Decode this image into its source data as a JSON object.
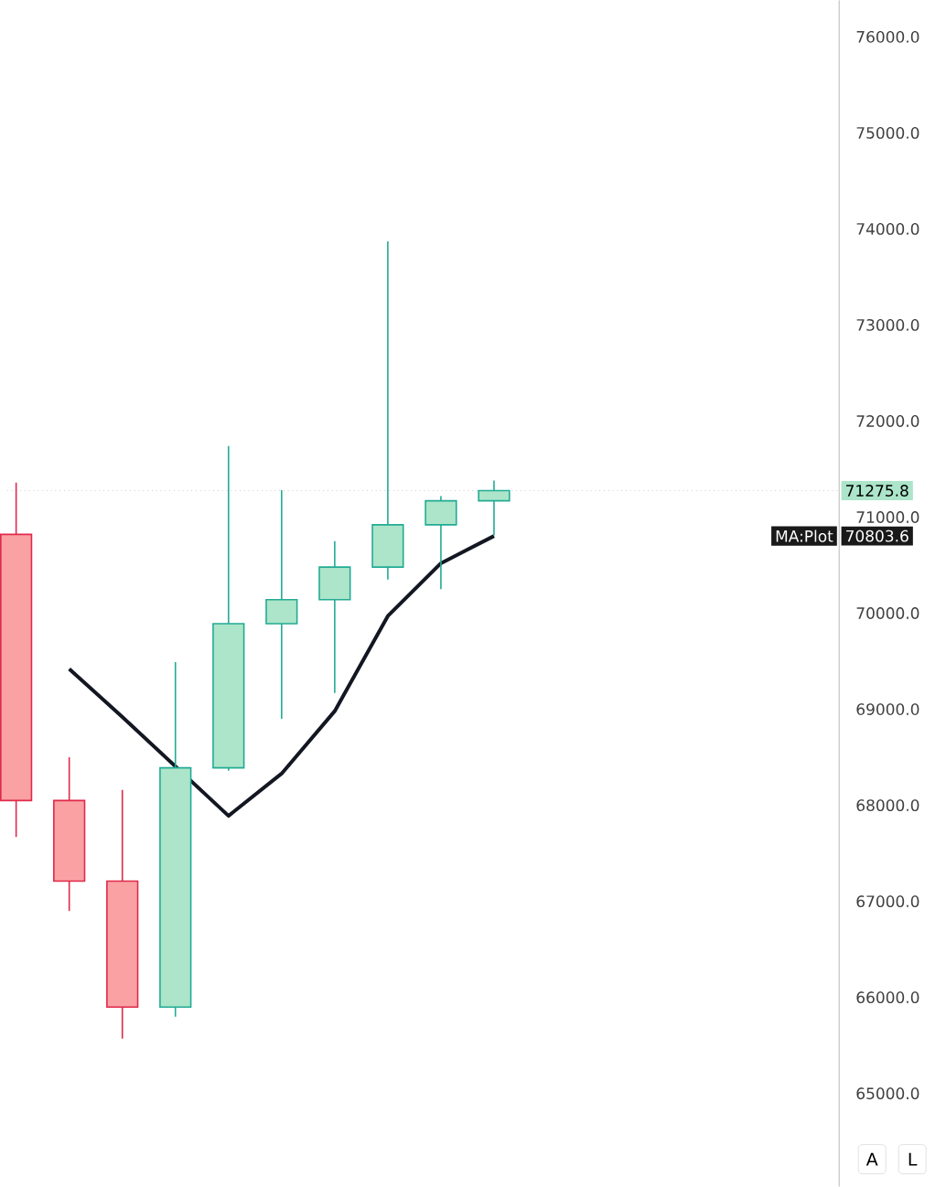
{
  "chart_data": {
    "type": "candlestick",
    "categories": [
      null,
      null,
      null,
      null,
      null,
      null,
      null,
      null,
      null,
      null
    ],
    "series": [
      {
        "ohlc": [
          [
            70820,
            71360,
            67670,
            68050
          ],
          [
            68050,
            68500,
            66900,
            67210
          ],
          [
            67210,
            68160,
            65570,
            65900
          ],
          [
            65900,
            69490,
            65800,
            68390
          ],
          [
            68390,
            71740,
            68360,
            69890
          ],
          [
            69890,
            71280,
            68900,
            70140
          ],
          [
            70140,
            70750,
            69170,
            70480
          ],
          [
            70480,
            73870,
            70350,
            70920
          ],
          [
            70920,
            71220,
            70250,
            71170
          ],
          [
            71170,
            71380,
            70810,
            71275.8
          ]
        ]
      },
      {
        "type": "line",
        "name": "MA:Plot",
        "color": "#131722",
        "values": [
          null,
          69420,
          68920,
          null,
          67890,
          68330,
          68980,
          69970,
          70520,
          70803.6
        ]
      }
    ],
    "ylim": [
      64030,
      76380
    ],
    "yticks": [
      {
        "value": 65000,
        "label": "65000.0"
      },
      {
        "value": 66000,
        "label": "66000.0"
      },
      {
        "value": 67000,
        "label": "67000.0"
      },
      {
        "value": 68000,
        "label": "68000.0"
      },
      {
        "value": 69000,
        "label": "69000.0"
      },
      {
        "value": 70000,
        "label": "70000.0"
      },
      {
        "value": 71000,
        "label": "71000.0"
      },
      {
        "value": 72000,
        "label": "72000.0"
      },
      {
        "value": 73000,
        "label": "73000.0"
      },
      {
        "value": 74000,
        "label": "74000.0"
      },
      {
        "value": 75000,
        "label": "75000.0"
      },
      {
        "value": 76000,
        "label": "76000.0"
      }
    ],
    "tick_labels": "y",
    "ref_lines": [
      {
        "axis": "y",
        "value": 71275.8,
        "label": "71275.8",
        "color": "#b2b5be",
        "line_style": "dotted"
      }
    ],
    "annotations": [
      "70803.6",
      "A",
      "L"
    ]
  }
}
